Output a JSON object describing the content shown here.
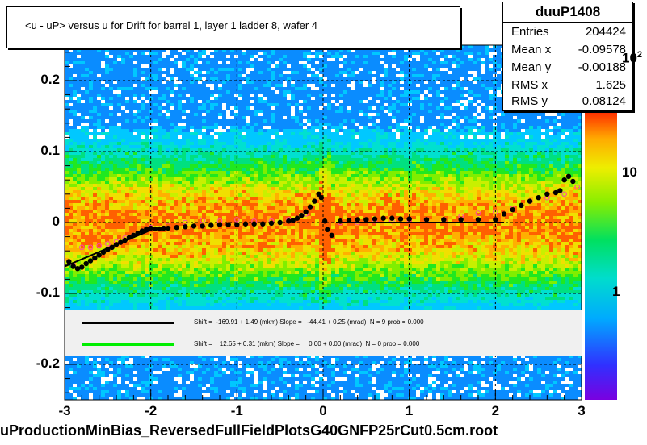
{
  "title": "<u - uP>       versus   u for Drift for barrel 1, layer 1 ladder 8, wafer 4",
  "footer": "uProductionMinBias_ReversedFullFieldPlotsG40GNFP25rCut0.5cm.root",
  "stats": {
    "name": "duuP1408",
    "rows": [
      {
        "key": "Entries",
        "value": "204424"
      },
      {
        "key": "Mean x",
        "value": "-0.09578"
      },
      {
        "key": "Mean y",
        "value": "-0.00188"
      },
      {
        "key": "RMS x",
        "value": "1.625"
      },
      {
        "key": "RMS y",
        "value": "0.08124"
      }
    ]
  },
  "legend": [
    {
      "text": "Shift =  -169.91 + 1.49 (mkm) Slope =   -44.41 + 0.25 (mrad)  N = 9 prob = 0.000",
      "color": "#000000"
    },
    {
      "text": "Shift =    12.65 + 0.31 (mkm) Slope =     0.00 + 0.00 (mrad)  N = 0 prob = 0.000",
      "color": "#00ee00"
    }
  ],
  "colorbar": {
    "labels": [
      "1",
      "10",
      "10"
    ],
    "exponent": "2"
  },
  "chart_data": {
    "type": "heatmap",
    "xlim": [
      -3,
      3
    ],
    "ylim": [
      -0.25,
      0.25
    ],
    "x_ticks": [
      "-3",
      "-2",
      "-1",
      "0",
      "1",
      "2",
      "3"
    ],
    "y_ticks": [
      "-0.2",
      "-0.1",
      "0",
      "0.1",
      "0.2"
    ],
    "grid": true,
    "z_scale": "log",
    "profile_black": {
      "x": [
        -2.95,
        -2.9,
        -2.85,
        -2.8,
        -2.75,
        -2.7,
        -2.65,
        -2.6,
        -2.55,
        -2.5,
        -2.45,
        -2.4,
        -2.35,
        -2.3,
        -2.25,
        -2.2,
        -2.15,
        -2.1,
        -2.05,
        -2.0,
        -1.95,
        -1.9,
        -1.85,
        -1.8,
        -1.7,
        -1.6,
        -1.5,
        -1.4,
        -1.3,
        -1.2,
        -1.1,
        -1.0,
        -0.9,
        -0.8,
        -0.7,
        -0.6,
        -0.5,
        -0.4,
        -0.35,
        -0.3,
        -0.25,
        -0.2,
        -0.15,
        -0.1,
        -0.05,
        -0.02,
        0.02,
        0.05,
        0.1,
        0.2,
        0.3,
        0.4,
        0.5,
        0.6,
        0.7,
        0.8,
        0.9,
        1.0,
        1.2,
        1.4,
        1.6,
        1.8,
        2.0,
        2.1,
        2.2,
        2.3,
        2.4,
        2.5,
        2.6,
        2.7,
        2.75,
        2.8,
        2.85,
        2.9
      ],
      "y": [
        -0.055,
        -0.062,
        -0.065,
        -0.063,
        -0.058,
        -0.054,
        -0.05,
        -0.046,
        -0.042,
        -0.038,
        -0.035,
        -0.031,
        -0.028,
        -0.025,
        -0.021,
        -0.018,
        -0.015,
        -0.012,
        -0.009,
        -0.008,
        -0.009,
        -0.009,
        -0.008,
        -0.008,
        -0.007,
        -0.006,
        -0.005,
        -0.005,
        -0.004,
        -0.003,
        -0.003,
        -0.003,
        -0.002,
        -0.002,
        -0.002,
        -0.001,
        0.0,
        0.002,
        0.003,
        0.006,
        0.01,
        0.015,
        0.022,
        0.03,
        0.04,
        0.035,
        0.002,
        -0.01,
        -0.018,
        0.002,
        0.003,
        0.004,
        0.004,
        0.005,
        0.006,
        0.006,
        0.005,
        0.005,
        0.004,
        0.004,
        0.004,
        0.004,
        0.004,
        0.012,
        0.018,
        0.024,
        0.03,
        0.035,
        0.04,
        0.042,
        0.045,
        0.06,
        0.065,
        0.058
      ]
    },
    "profile_pink": {
      "x": [
        -2.9,
        -2.8,
        -2.7,
        -2.6,
        -2.5,
        -2.4,
        -2.3,
        -2.2,
        -2.1,
        -2.0,
        -1.8,
        -1.6,
        -1.4,
        -1.2,
        -1.0,
        -0.8,
        -0.6,
        -0.4,
        -0.2,
        0.2,
        0.4,
        0.6,
        0.8,
        1.0,
        1.2,
        1.4,
        1.6,
        1.8,
        2.0,
        2.2,
        2.4,
        2.6,
        2.8,
        2.95
      ],
      "y": [
        -0.06,
        -0.035,
        -0.035,
        -0.033,
        -0.03,
        -0.027,
        -0.022,
        -0.018,
        -0.012,
        -0.007,
        -0.004,
        0.0,
        0.003,
        0.002,
        0.004,
        0.002,
        0.002,
        0.004,
        0.012,
        0.0,
        0.0,
        0.002,
        0.002,
        0.004,
        0.004,
        0.004,
        0.009,
        0.013,
        0.015,
        0.02,
        0.03,
        0.035,
        0.04,
        0.05
      ]
    }
  }
}
